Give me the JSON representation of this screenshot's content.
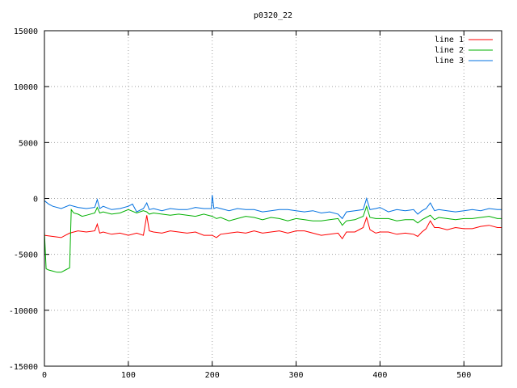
{
  "chart_data": {
    "type": "line",
    "title": "p0320_22",
    "xlabel": "",
    "ylabel": "",
    "xlim": [
      0,
      545
    ],
    "ylim": [
      -15000,
      15000
    ],
    "xticks": [
      0,
      100,
      200,
      300,
      400,
      500
    ],
    "yticks": [
      -15000,
      -10000,
      -5000,
      0,
      5000,
      10000,
      15000
    ],
    "grid": true,
    "legend_position": "top-right",
    "series": [
      {
        "name": "line 1",
        "color": "#ff0000",
        "x": [
          0,
          10,
          20,
          25,
          30,
          40,
          50,
          60,
          63,
          66,
          70,
          80,
          90,
          100,
          110,
          118,
          122,
          125,
          130,
          140,
          150,
          160,
          170,
          180,
          190,
          200,
          205,
          210,
          220,
          230,
          240,
          250,
          260,
          270,
          280,
          290,
          300,
          310,
          320,
          330,
          340,
          350,
          355,
          360,
          370,
          380,
          384,
          388,
          395,
          400,
          410,
          420,
          430,
          440,
          445,
          450,
          455,
          460,
          465,
          470,
          480,
          490,
          500,
          510,
          520,
          530,
          540,
          545
        ],
        "y": [
          -3300,
          -3400,
          -3500,
          -3300,
          -3100,
          -2900,
          -3000,
          -2900,
          -2300,
          -3100,
          -3000,
          -3200,
          -3100,
          -3300,
          -3100,
          -3300,
          -1500,
          -2900,
          -3000,
          -3100,
          -2900,
          -3000,
          -3100,
          -3000,
          -3300,
          -3300,
          -3500,
          -3200,
          -3100,
          -3000,
          -3100,
          -2900,
          -3100,
          -3000,
          -2900,
          -3100,
          -2900,
          -2900,
          -3100,
          -3300,
          -3200,
          -3100,
          -3600,
          -3000,
          -3000,
          -2600,
          -1700,
          -2800,
          -3100,
          -3000,
          -3000,
          -3200,
          -3100,
          -3200,
          -3400,
          -3000,
          -2700,
          -2000,
          -2600,
          -2600,
          -2800,
          -2600,
          -2700,
          -2700,
          -2500,
          -2400,
          -2600,
          -2600
        ]
      },
      {
        "name": "line 2",
        "color": "#00b000",
        "x": [
          0,
          2,
          5,
          10,
          15,
          20,
          25,
          30,
          32,
          35,
          40,
          45,
          50,
          60,
          63,
          66,
          70,
          80,
          90,
          100,
          110,
          118,
          122,
          125,
          130,
          140,
          150,
          160,
          170,
          180,
          190,
          200,
          205,
          210,
          220,
          230,
          240,
          250,
          260,
          270,
          280,
          290,
          300,
          310,
          320,
          330,
          340,
          350,
          355,
          360,
          370,
          380,
          384,
          388,
          395,
          400,
          410,
          420,
          430,
          440,
          445,
          450,
          455,
          460,
          465,
          470,
          480,
          490,
          500,
          510,
          520,
          530,
          540,
          545
        ],
        "y": [
          -3000,
          -6300,
          -6400,
          -6500,
          -6600,
          -6600,
          -6400,
          -6200,
          -1000,
          -1300,
          -1400,
          -1600,
          -1500,
          -1300,
          -800,
          -1300,
          -1200,
          -1400,
          -1300,
          -1000,
          -1300,
          -1100,
          -1200,
          -1400,
          -1300,
          -1400,
          -1500,
          -1400,
          -1500,
          -1600,
          -1400,
          -1600,
          -1800,
          -1700,
          -2000,
          -1800,
          -1600,
          -1700,
          -1900,
          -1700,
          -1800,
          -2000,
          -1800,
          -1900,
          -2000,
          -2000,
          -1900,
          -1800,
          -2400,
          -2000,
          -1900,
          -1600,
          -700,
          -1700,
          -1800,
          -1800,
          -1800,
          -2000,
          -1900,
          -1900,
          -2200,
          -1900,
          -1700,
          -1500,
          -1900,
          -1700,
          -1800,
          -1900,
          -1800,
          -1800,
          -1700,
          -1600,
          -1800,
          -1800
        ]
      },
      {
        "name": "line 3",
        "color": "#0070e0",
        "x": [
          0,
          5,
          10,
          20,
          30,
          40,
          50,
          60,
          63,
          66,
          70,
          80,
          90,
          100,
          105,
          110,
          118,
          122,
          125,
          130,
          140,
          150,
          160,
          170,
          180,
          190,
          199,
          200,
          202,
          205,
          210,
          220,
          230,
          240,
          250,
          260,
          270,
          280,
          290,
          300,
          310,
          320,
          330,
          340,
          350,
          355,
          360,
          370,
          380,
          384,
          388,
          395,
          400,
          410,
          420,
          430,
          440,
          445,
          450,
          455,
          460,
          465,
          470,
          480,
          490,
          500,
          510,
          520,
          530,
          540,
          545
        ],
        "y": [
          -200,
          -500,
          -700,
          -900,
          -600,
          -800,
          -900,
          -800,
          -100,
          -900,
          -700,
          -1000,
          -900,
          -700,
          -500,
          -1200,
          -900,
          -400,
          -1000,
          -900,
          -1100,
          -900,
          -1000,
          -1000,
          -800,
          -900,
          -900,
          300,
          -900,
          -800,
          -900,
          -1100,
          -900,
          -1000,
          -1000,
          -1200,
          -1100,
          -1000,
          -1000,
          -1100,
          -1200,
          -1100,
          -1300,
          -1200,
          -1400,
          -1800,
          -1200,
          -1100,
          -1000,
          0,
          -1000,
          -900,
          -800,
          -1200,
          -1000,
          -1100,
          -1000,
          -1400,
          -1100,
          -900,
          -400,
          -1100,
          -1000,
          -1100,
          -1200,
          -1100,
          -1000,
          -1100,
          -900,
          -1000,
          -1000
        ]
      }
    ]
  }
}
